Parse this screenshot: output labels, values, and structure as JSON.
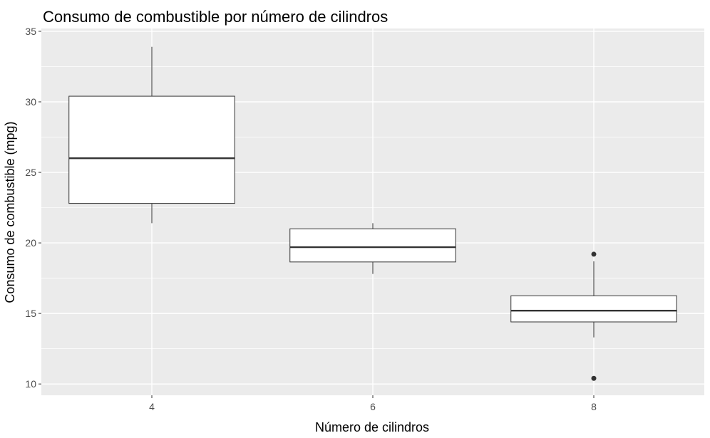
{
  "chart_data": {
    "type": "boxplot",
    "title": "Consumo de combustible por número de cilindros",
    "xlabel": "Número de cilindros",
    "ylabel": "Consumo de combustible (mpg)",
    "categories": [
      "4",
      "6",
      "8"
    ],
    "y_ticks": [
      10,
      15,
      20,
      25,
      30,
      35
    ],
    "ylim": [
      9.2,
      35.2
    ],
    "grid": true,
    "colors": {
      "panel": "#ebebeb",
      "grid": "#ffffff",
      "box_fill": "#ffffff",
      "box_stroke": "#333333",
      "outlier": "#333333"
    },
    "boxes": [
      {
        "category": "4",
        "min": 21.4,
        "q1": 22.8,
        "median": 26.0,
        "q3": 30.4,
        "max": 33.9,
        "outliers": []
      },
      {
        "category": "6",
        "min": 17.8,
        "q1": 18.65,
        "median": 19.7,
        "q3": 21.0,
        "max": 21.4,
        "outliers": []
      },
      {
        "category": "8",
        "min": 13.3,
        "q1": 14.4,
        "median": 15.2,
        "q3": 16.25,
        "max": 18.7,
        "outliers": [
          10.4,
          19.2
        ]
      }
    ]
  }
}
